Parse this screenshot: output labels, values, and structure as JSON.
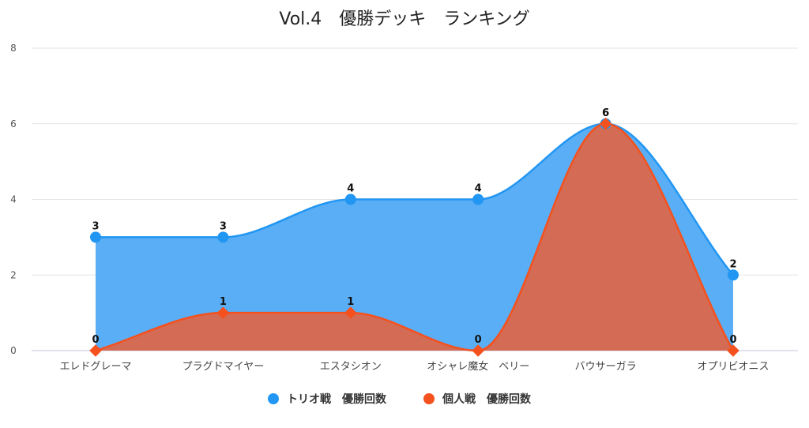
{
  "chart_data": {
    "type": "area",
    "title": "Vol.4　優勝デッキ　ランキング",
    "categories": [
      "エレドグレーマ",
      "プラグドマイヤー",
      "エスタシオン",
      "オシャレ魔女　ベリー",
      "バウサーガラ",
      "オプリビオニス"
    ],
    "series": [
      {
        "name": "トリオ戦　優勝回数",
        "values": [
          3,
          3,
          4,
          4,
          6,
          2
        ],
        "color": "#2196f3",
        "fill": "#5aaef5",
        "marker": "circle"
      },
      {
        "name": "個人戦　優勝回数",
        "values": [
          0,
          1,
          1,
          0,
          6,
          0
        ],
        "color": "#f4511e",
        "fill": "#d8694f",
        "marker": "diamond"
      }
    ],
    "ylim": [
      0,
      8
    ],
    "yticks": [
      0,
      2,
      4,
      6,
      8
    ],
    "grid": true,
    "legend": "bottom"
  }
}
